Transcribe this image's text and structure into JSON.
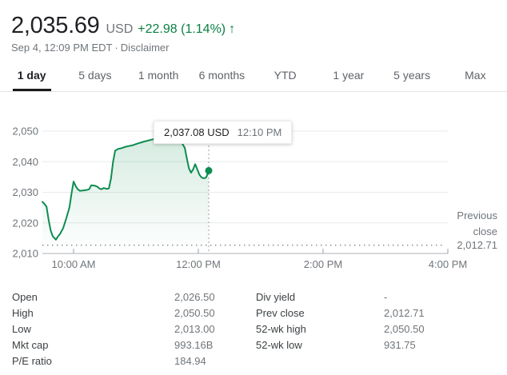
{
  "header": {
    "price": "2,035.69",
    "currency": "USD",
    "change": "+22.98 (1.14%)",
    "arrow": "↑",
    "timestamp": "Sep 4, 12:09 PM EDT",
    "separator": "·",
    "disclaimer": "Disclaimer",
    "colors": {
      "up_green": "#0b8043",
      "price_text": "#202124",
      "muted_text": "#70757a"
    }
  },
  "tabs": [
    {
      "label": "1 day",
      "active": true
    },
    {
      "label": "5 days",
      "active": false
    },
    {
      "label": "1 month",
      "active": false
    },
    {
      "label": "6 months",
      "active": false
    },
    {
      "label": "YTD",
      "active": false
    },
    {
      "label": "1 year",
      "active": false
    },
    {
      "label": "5 years",
      "active": false
    },
    {
      "label": "Max",
      "active": false
    }
  ],
  "tooltip": {
    "price": "2,037.08 USD",
    "time": "12:10 PM"
  },
  "chart_data": {
    "type": "area",
    "title": "Intraday stock price, 1 day view",
    "x_tick_labels": [
      "10:00 AM",
      "12:00 PM",
      "2:00 PM",
      "4:00 PM"
    ],
    "x_tick_minutes": [
      30,
      150,
      270,
      390
    ],
    "session_minutes": [
      0,
      390
    ],
    "session_times": [
      "9:30 AM",
      "4:00 PM"
    ],
    "y_ticks": [
      2010,
      2020,
      2030,
      2040,
      2050
    ],
    "y_tick_labels": [
      "2,010",
      "2,020",
      "2,030",
      "2,040",
      "2,050"
    ],
    "ylim": [
      2010,
      2052
    ],
    "grid": true,
    "legend": "none",
    "previous_close": {
      "label": "Previous close",
      "value": 2012.71,
      "display": "2,012.71"
    },
    "current_point": {
      "minute": 160,
      "value": 2037.08,
      "time": "12:10 PM"
    },
    "line_color": "#0d8c4f",
    "series": [
      {
        "name": "price_usd",
        "points": [
          [
            0,
            2026.9
          ],
          [
            2,
            2026.2
          ],
          [
            4,
            2025.3
          ],
          [
            6,
            2021.0
          ],
          [
            8,
            2017.5
          ],
          [
            10,
            2015.6
          ],
          [
            12,
            2014.9
          ],
          [
            13,
            2014.5
          ],
          [
            15,
            2015.6
          ],
          [
            17,
            2016.4
          ],
          [
            20,
            2018.3
          ],
          [
            23,
            2021.5
          ],
          [
            26,
            2025.0
          ],
          [
            28,
            2029.5
          ],
          [
            30,
            2033.5
          ],
          [
            32,
            2032.0
          ],
          [
            34,
            2031.0
          ],
          [
            36,
            2030.5
          ],
          [
            39,
            2030.6
          ],
          [
            42,
            2030.7
          ],
          [
            45,
            2031.0
          ],
          [
            47,
            2032.3
          ],
          [
            50,
            2032.2
          ],
          [
            53,
            2031.8
          ],
          [
            55,
            2031.2
          ],
          [
            57,
            2031.0
          ],
          [
            59,
            2031.4
          ],
          [
            62,
            2031.1
          ],
          [
            64,
            2031.3
          ],
          [
            66,
            2034.5
          ],
          [
            68,
            2040.0
          ],
          [
            70,
            2043.6
          ],
          [
            73,
            2044.2
          ],
          [
            76,
            2044.4
          ],
          [
            79,
            2044.8
          ],
          [
            83,
            2045.1
          ],
          [
            87,
            2045.4
          ],
          [
            92,
            2046.0
          ],
          [
            98,
            2046.6
          ],
          [
            105,
            2047.2
          ],
          [
            112,
            2047.8
          ],
          [
            118,
            2048.3
          ],
          [
            124,
            2048.0
          ],
          [
            129,
            2047.2
          ],
          [
            134,
            2046.3
          ],
          [
            137,
            2044.5
          ],
          [
            139,
            2041.0
          ],
          [
            141,
            2037.8
          ],
          [
            143,
            2036.4
          ],
          [
            145,
            2037.5
          ],
          [
            147,
            2039.2
          ],
          [
            149,
            2037.5
          ],
          [
            151,
            2035.8
          ],
          [
            153,
            2034.9
          ],
          [
            155,
            2034.6
          ],
          [
            157,
            2034.7
          ],
          [
            158,
            2035.2
          ],
          [
            160,
            2037.08
          ]
        ]
      }
    ]
  },
  "stats": {
    "left": [
      {
        "label": "Open",
        "value": "2,026.50"
      },
      {
        "label": "High",
        "value": "2,050.50"
      },
      {
        "label": "Low",
        "value": "2,013.00"
      },
      {
        "label": "Mkt cap",
        "value": "993.16B"
      },
      {
        "label": "P/E ratio",
        "value": "184.94"
      }
    ],
    "right": [
      {
        "label": "Div yield",
        "value": "-"
      },
      {
        "label": "Prev close",
        "value": "2,012.71"
      },
      {
        "label": "52-wk high",
        "value": "2,050.50"
      },
      {
        "label": "52-wk low",
        "value": "931.75"
      }
    ]
  }
}
